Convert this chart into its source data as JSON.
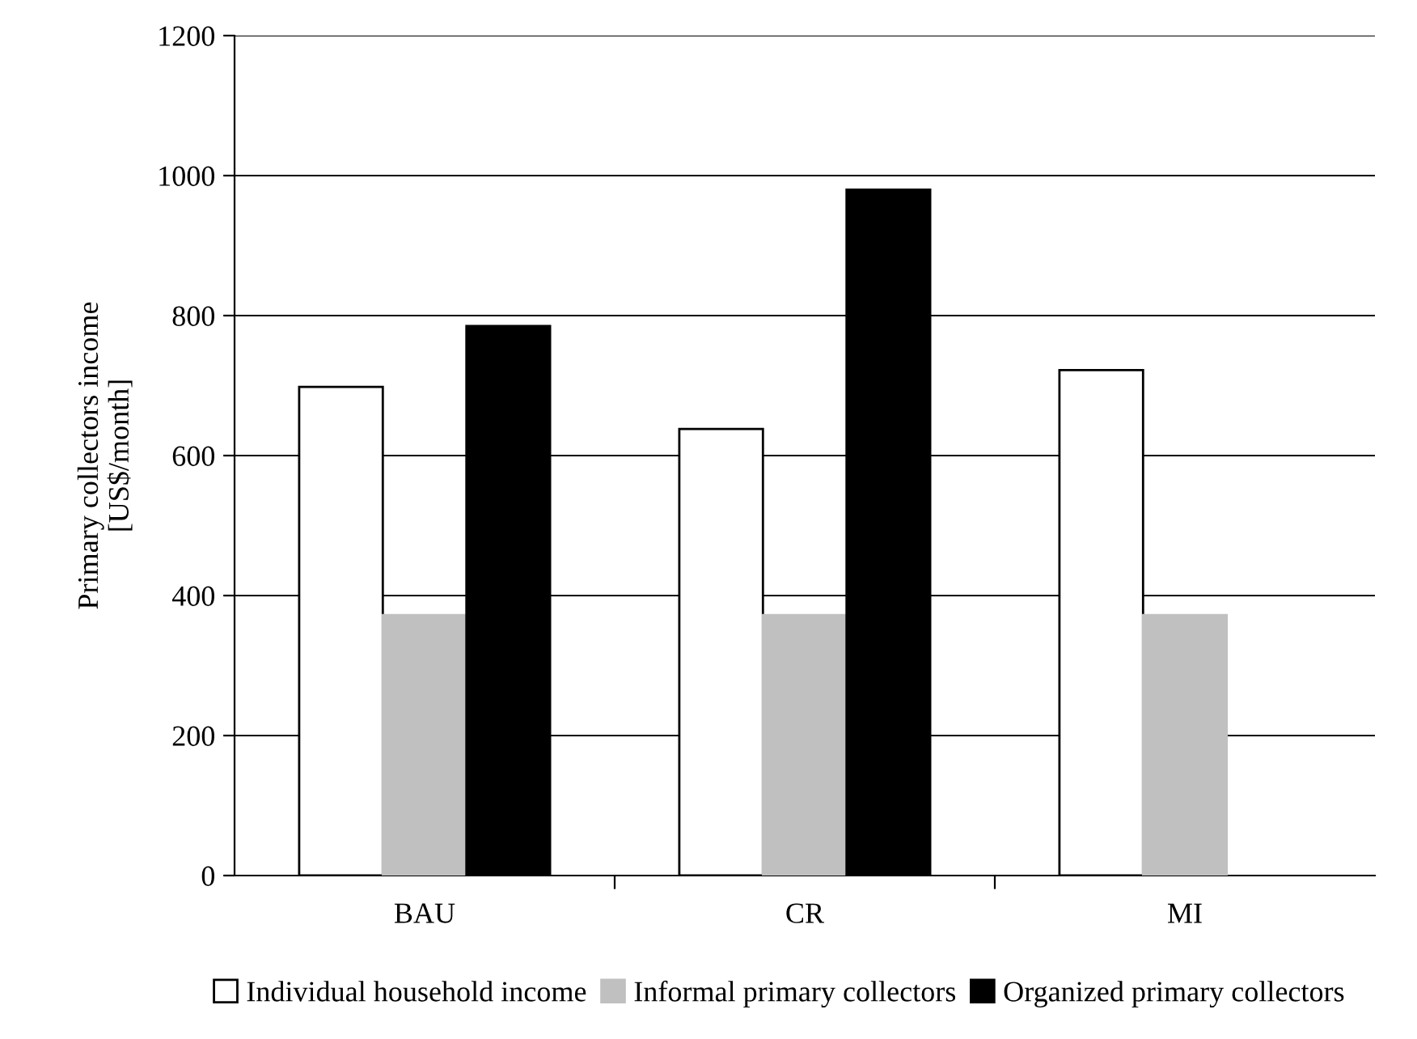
{
  "chart_data": {
    "type": "bar",
    "ylabel": "Primary collectors income\n[US$/month]",
    "categories": [
      "BAU",
      "CR",
      "MI"
    ],
    "series": [
      {
        "name": "Individual household income",
        "color": "#ffffff",
        "values": [
          698,
          638,
          722
        ]
      },
      {
        "name": "Informal primary collectors",
        "color": "#c0c0c0",
        "values": [
          372,
          372,
          372
        ]
      },
      {
        "name": "Organized primary collectors",
        "color": "#000000",
        "values": [
          785,
          980,
          null
        ]
      }
    ],
    "ylim": [
      0,
      1200
    ],
    "yticks": [
      0,
      200,
      400,
      600,
      800,
      1000,
      1200
    ],
    "grid": "y",
    "legend": "bottom"
  }
}
